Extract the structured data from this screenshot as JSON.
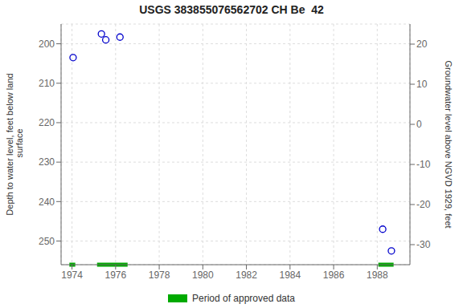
{
  "chart_data": {
    "type": "scatter",
    "title": "USGS 383855076562702 CH Be  42",
    "ylabel": "Depth to water level, feet below land\n surface",
    "y2label": "Groundwater level above NGVD 1929, feet",
    "x": [
      1974.05,
      1975.35,
      1975.55,
      1976.2,
      1988.25,
      1988.65
    ],
    "series": [
      {
        "values": [
          203.5,
          197.5,
          199.0,
          198.3,
          247.0,
          252.5
        ],
        "color": "#0000cc",
        "marker": "circle"
      }
    ],
    "periods": {
      "name": "Period of approved data",
      "color": "#00aa00",
      "ranges": [
        {
          "start": 1973.88,
          "end": 1974.15
        },
        {
          "start": 1975.15,
          "end": 1976.55
        },
        {
          "start": 1988.05,
          "end": 1988.75
        }
      ]
    },
    "xlim": [
      1973.5,
      1989.5
    ],
    "xticks": [
      1974,
      1976,
      1978,
      1980,
      1982,
      1984,
      1986,
      1988
    ],
    "ylim": [
      256,
      195
    ],
    "yticks": [
      200,
      210,
      220,
      230,
      240,
      250
    ],
    "y2lim": [
      -35,
      25
    ],
    "y2ticks": [
      20,
      10,
      0,
      -10,
      -20,
      -30
    ],
    "grid": true,
    "legend": "bottom"
  }
}
